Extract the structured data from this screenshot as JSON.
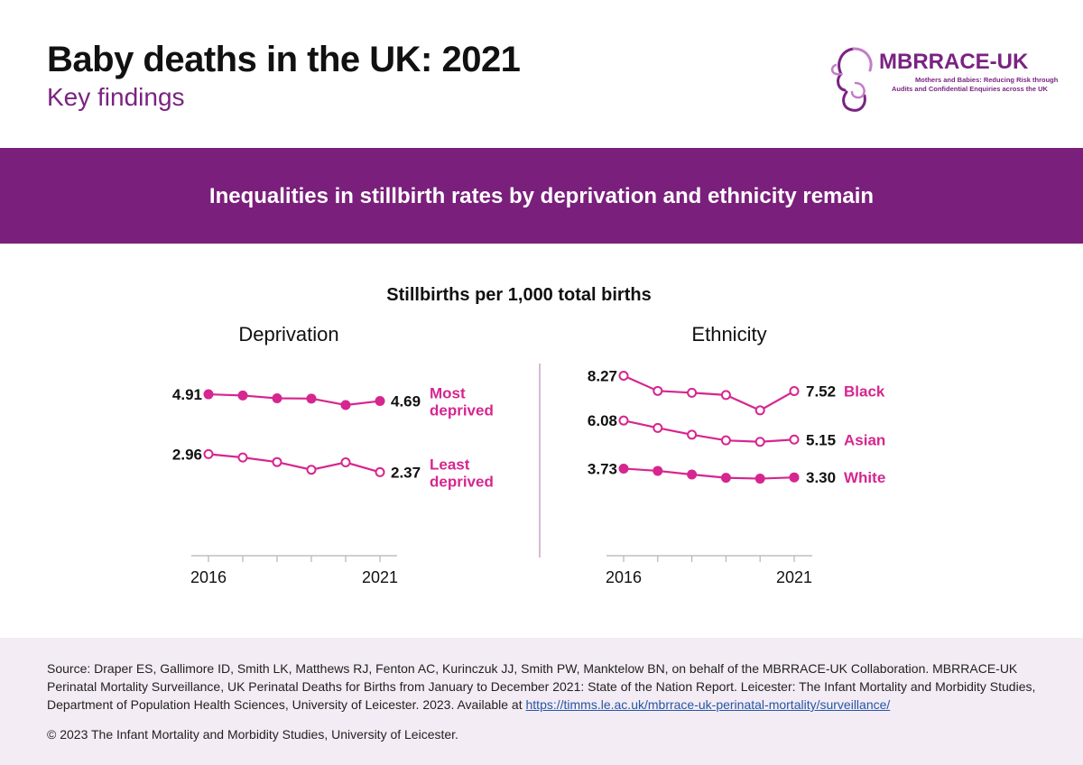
{
  "header": {
    "title": "Baby deaths in the UK: 2021",
    "subtitle": "Key findings"
  },
  "logo": {
    "name": "MBRRACE-UK",
    "tagline_line1": "Mothers and Babies: Reducing Risk through",
    "tagline_line2": "Audits and Confidential Enquiries across the UK"
  },
  "banner": {
    "text": "Inequalities in stillbirth rates by deprivation and ethnicity remain"
  },
  "chart_heading": "Stillbirths per 1,000 total births",
  "colors": {
    "brand_purple": "#7a1f7b",
    "series_magenta": "#d6268f",
    "footer_bg": "#f4ecf4"
  },
  "chart_data": [
    {
      "type": "line",
      "title": "Deprivation",
      "x": [
        2016,
        2017,
        2018,
        2019,
        2020,
        2021
      ],
      "x_tick_labels": [
        "2016",
        "2021"
      ],
      "ylim": [
        0,
        6
      ],
      "grid": false,
      "series": [
        {
          "name": "Most deprived",
          "values": [
            4.91,
            4.87,
            4.78,
            4.77,
            4.56,
            4.69
          ],
          "start_label": "4.91",
          "end_label": "4.69",
          "name_lines": [
            "Most",
            "deprived"
          ],
          "marker": "filled"
        },
        {
          "name": "Least deprived",
          "values": [
            2.96,
            2.85,
            2.7,
            2.45,
            2.69,
            2.37
          ],
          "start_label": "2.96",
          "end_label": "2.37",
          "name_lines": [
            "Least",
            "deprived"
          ],
          "marker": "open"
        }
      ]
    },
    {
      "type": "line",
      "title": "Ethnicity",
      "x": [
        2016,
        2017,
        2018,
        2019,
        2020,
        2021
      ],
      "x_tick_labels": [
        "2016",
        "2021"
      ],
      "ylim": [
        0,
        9
      ],
      "grid": false,
      "series": [
        {
          "name": "Black",
          "values": [
            8.27,
            7.53,
            7.44,
            7.33,
            6.58,
            7.52
          ],
          "start_label": "8.27",
          "end_label": "7.52",
          "name_lines": [
            "Black"
          ],
          "marker": "open"
        },
        {
          "name": "Asian",
          "values": [
            6.08,
            5.72,
            5.39,
            5.11,
            5.04,
            5.15
          ],
          "start_label": "6.08",
          "end_label": "5.15",
          "name_lines": [
            "Asian"
          ],
          "marker": "open"
        },
        {
          "name": "White",
          "values": [
            3.73,
            3.62,
            3.44,
            3.28,
            3.24,
            3.3
          ],
          "start_label": "3.73",
          "end_label": "3.30",
          "name_lines": [
            "White"
          ],
          "marker": "filled"
        }
      ]
    }
  ],
  "footer": {
    "source_text": "Source: Draper ES, Gallimore ID, Smith LK, Matthews RJ, Fenton AC, Kurinczuk JJ, Smith PW, Manktelow BN, on behalf of the MBRRACE-UK Collaboration. MBRRACE-UK Perinatal Mortality Surveillance, UK Perinatal Deaths for Births from January to December 2021: State of the Nation Report. Leicester: The Infant Mortality and Morbidity Studies, Department of Population Health Sciences, University of Leicester. 2023. Available at ",
    "source_link": "https://timms.le.ac.uk/mbrrace-uk-perinatal-mortality/surveillance/",
    "copyright": "© 2023 The Infant Mortality and Morbidity Studies, University of Leicester."
  }
}
